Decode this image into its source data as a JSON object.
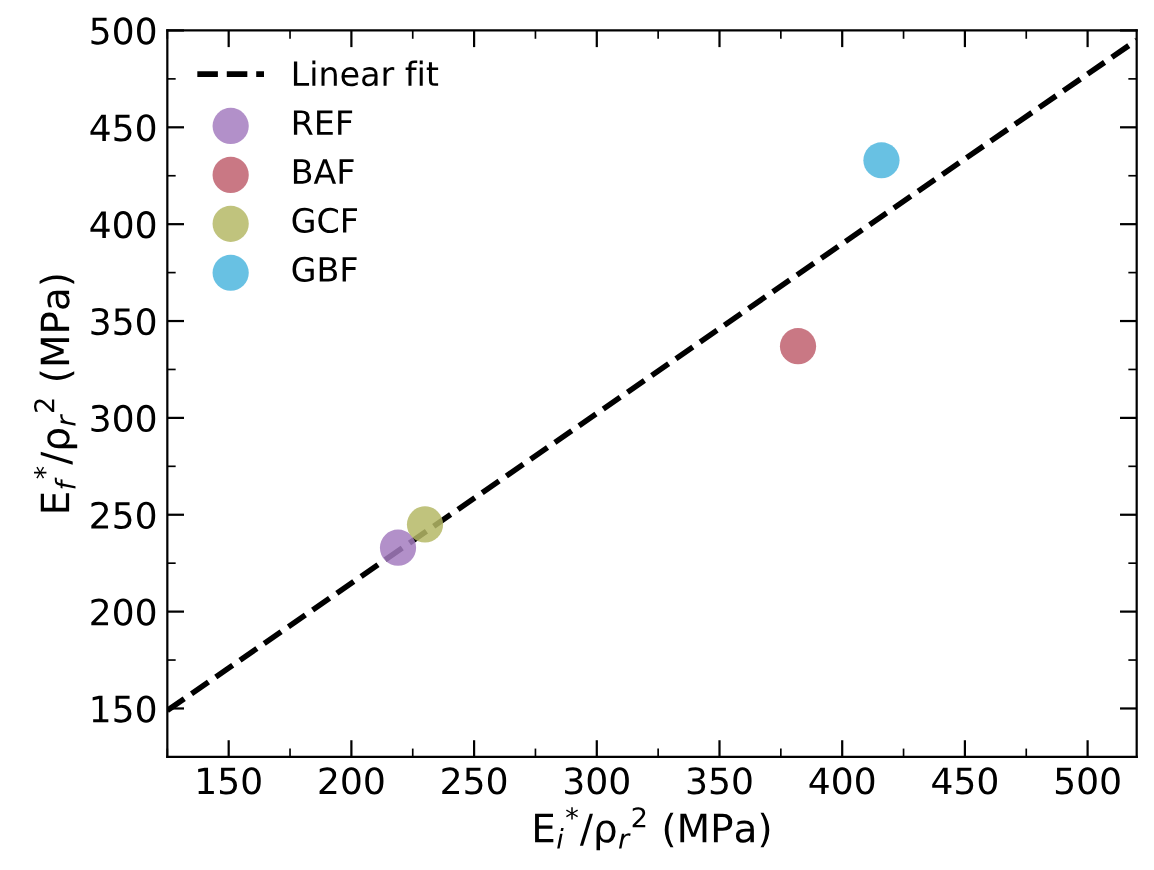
{
  "chart_data": {
    "type": "scatter",
    "xlabel": "E$_{i}$$^{*}$/ρ$_{r}$$^{2}$ (MPa)",
    "ylabel": "E$_{f}$$^{*}$/ρ$_{r}$$^{2}$ (MPa)",
    "xlim": [
      125,
      520
    ],
    "ylim": [
      125,
      500
    ],
    "xticks": [
      150,
      200,
      250,
      300,
      350,
      400,
      450,
      500
    ],
    "yticks": [
      150,
      200,
      250,
      300,
      350,
      400,
      450,
      500
    ],
    "grid": false,
    "legend": "top left",
    "marker": "circle",
    "series": [
      {
        "name": "Linear fit",
        "type": "line",
        "line_style": "dashed",
        "marker": "none",
        "color": "#000000",
        "x": [
          125,
          520
        ],
        "values": [
          149,
          495
        ]
      },
      {
        "name": "REF",
        "color": "#a57cbf",
        "x": [
          219
        ],
        "values": [
          233
        ]
      },
      {
        "name": "BAF",
        "color": "#c0606e",
        "x": [
          382
        ],
        "values": [
          337
        ]
      },
      {
        "name": "GCF",
        "color": "#b5b866",
        "x": [
          230
        ],
        "values": [
          245
        ]
      },
      {
        "name": "GBF",
        "color": "#4db6de",
        "x": [
          416
        ],
        "values": [
          433
        ]
      }
    ]
  }
}
